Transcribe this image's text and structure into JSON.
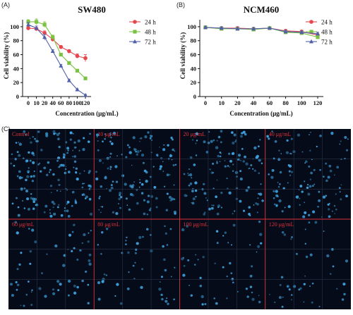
{
  "panel_labels": [
    "(A)",
    "(B)",
    "(C)"
  ],
  "colors": {
    "h24": "#e8464e",
    "h48": "#7cc242",
    "h72": "#4f5fa8",
    "grid": "#e0303a",
    "mic_bg": "#050b18",
    "cell": "#3ea3e0"
  },
  "chart_data": [
    {
      "type": "line",
      "title": "SW480",
      "xlabel": "Concentration (μg/mL)",
      "ylabel": "Cell  viability (%)",
      "x": [
        0,
        10,
        20,
        40,
        60,
        80,
        100,
        120
      ],
      "xticks": [
        "0",
        "10",
        "20",
        "40",
        "60",
        "80",
        "100",
        "120"
      ],
      "yticks": [
        "0",
        "20",
        "40",
        "60",
        "80",
        "100"
      ],
      "ylim": [
        0,
        110
      ],
      "legend": "top-right",
      "series": [
        {
          "name": "24 h",
          "marker": "circle",
          "values": [
            98,
            97,
            91,
            82,
            71,
            65,
            58,
            55
          ],
          "err": [
            3,
            2,
            3,
            3,
            2,
            2,
            3,
            5
          ]
        },
        {
          "name": "48 h",
          "marker": "square",
          "values": [
            107,
            107,
            103,
            85,
            60,
            48,
            37,
            26
          ],
          "err": [
            3,
            4,
            4,
            3,
            2,
            2,
            2,
            2
          ]
        },
        {
          "name": "72 h",
          "marker": "triangle",
          "values": [
            103,
            98,
            85,
            65,
            44,
            23,
            10,
            2
          ],
          "err": [
            3,
            3,
            4,
            2,
            2,
            2,
            1,
            1
          ]
        }
      ]
    },
    {
      "type": "line",
      "title": "NCM460",
      "xlabel": "Concentration (μg/mL)",
      "ylabel": "Cell  viability (%)",
      "x": [
        0,
        10,
        20,
        40,
        60,
        80,
        100,
        120
      ],
      "xticks": [
        "0",
        "10",
        "20",
        "40",
        "60",
        "80",
        "100",
        "120"
      ],
      "yticks": [
        "0",
        "20",
        "40",
        "60",
        "80",
        "100"
      ],
      "ylim": [
        0,
        110
      ],
      "legend": "top-right",
      "series": [
        {
          "name": "24 h",
          "marker": "circle",
          "values": [
            99,
            98,
            98,
            97,
            98,
            94,
            93,
            88
          ],
          "err": [
            2,
            2,
            2,
            2,
            1,
            2,
            2,
            2
          ]
        },
        {
          "name": "48 h",
          "marker": "square",
          "values": [
            99,
            97,
            97,
            96,
            98,
            92,
            91,
            85
          ],
          "err": [
            2,
            2,
            2,
            2,
            1,
            2,
            2,
            2
          ]
        },
        {
          "name": "72 h",
          "marker": "triangle",
          "values": [
            99,
            98,
            97,
            97,
            98,
            93,
            92,
            90
          ],
          "err": [
            2,
            2,
            2,
            2,
            1,
            2,
            2,
            2
          ]
        }
      ]
    }
  ],
  "micrograph": {
    "labels": [
      "Control",
      "10 μg/mL",
      "20 μg/mL",
      "40 μg/mL",
      "60 μg/mL",
      "80 μg/mL",
      "100 μg/mL",
      "120 μg/mL"
    ],
    "cell_density": [
      1.0,
      0.85,
      0.8,
      0.65,
      0.35,
      0.3,
      0.3,
      0.25
    ]
  }
}
